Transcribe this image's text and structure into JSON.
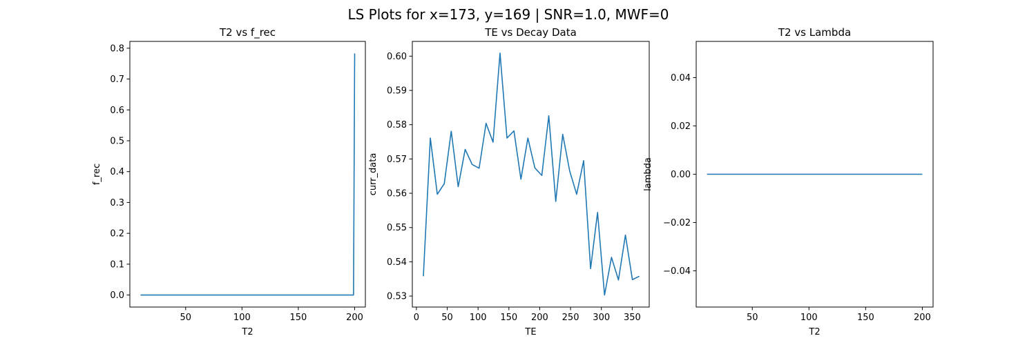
{
  "figure": {
    "suptitle": "LS Plots for x=173, y=169 | SNR=1.0, MWF=0"
  },
  "chart_data": [
    {
      "type": "line",
      "title": "T2 vs f_rec",
      "xlabel": "T2",
      "ylabel": "f_rec",
      "xlim": [
        0.5,
        209.5
      ],
      "ylim": [
        -0.039,
        0.822
      ],
      "xticks": [
        50,
        100,
        150,
        200
      ],
      "yticks": [
        0.0,
        0.1,
        0.2,
        0.3,
        0.4,
        0.5,
        0.6,
        0.7,
        0.8
      ],
      "ytick_format": "1",
      "grid": false,
      "color": "#1f77b4",
      "series": [
        {
          "x": [
            10,
            199,
            200
          ],
          "y": [
            0.0,
            0.0,
            0.783
          ]
        }
      ]
    },
    {
      "type": "line",
      "title": "TE vs Decay Data",
      "xlabel": "TE",
      "ylabel": "curr_data",
      "xlim": [
        -6.6,
        377.6
      ],
      "ylim": [
        0.5268,
        0.6043
      ],
      "xticks": [
        0,
        50,
        100,
        150,
        200,
        250,
        300,
        350
      ],
      "yticks": [
        0.53,
        0.54,
        0.55,
        0.56,
        0.57,
        0.58,
        0.59,
        0.6
      ],
      "ytick_format": "2",
      "grid": false,
      "color": "#1f77b4",
      "series": [
        {
          "x": [
            11.3,
            22.6,
            33.9,
            45.2,
            56.5,
            67.8,
            79.1,
            90.4,
            101.7,
            113,
            124.3,
            135.6,
            146.9,
            158.2,
            169.5,
            180.8,
            192.1,
            203.4,
            214.7,
            226,
            237.3,
            248.6,
            259.9,
            271.2,
            282.5,
            293.8,
            305.1,
            316.4,
            327.7,
            339,
            350.3,
            361.6
          ],
          "y": [
            0.5358,
            0.5761,
            0.5597,
            0.5628,
            0.5781,
            0.5619,
            0.5728,
            0.5684,
            0.5673,
            0.5804,
            0.5749,
            0.6009,
            0.5761,
            0.5782,
            0.5641,
            0.5761,
            0.5674,
            0.5652,
            0.5826,
            0.5576,
            0.5772,
            0.5665,
            0.5597,
            0.5695,
            0.538,
            0.5544,
            0.5303,
            0.5413,
            0.5347,
            0.5478,
            0.5348,
            0.5358
          ]
        }
      ]
    },
    {
      "type": "line",
      "title": "T2 vs Lambda",
      "xlabel": "T2",
      "ylabel": "lambda",
      "xlim": [
        0.5,
        209.5
      ],
      "ylim": [
        -0.055,
        0.055
      ],
      "xticks": [
        50,
        100,
        150,
        200
      ],
      "yticks": [
        -0.04,
        -0.02,
        0.0,
        0.02,
        0.04
      ],
      "ytick_format": "2",
      "grid": false,
      "color": "#1f77b4",
      "series": [
        {
          "x": [
            10,
            200
          ],
          "y": [
            0.0,
            0.0
          ]
        }
      ]
    }
  ]
}
